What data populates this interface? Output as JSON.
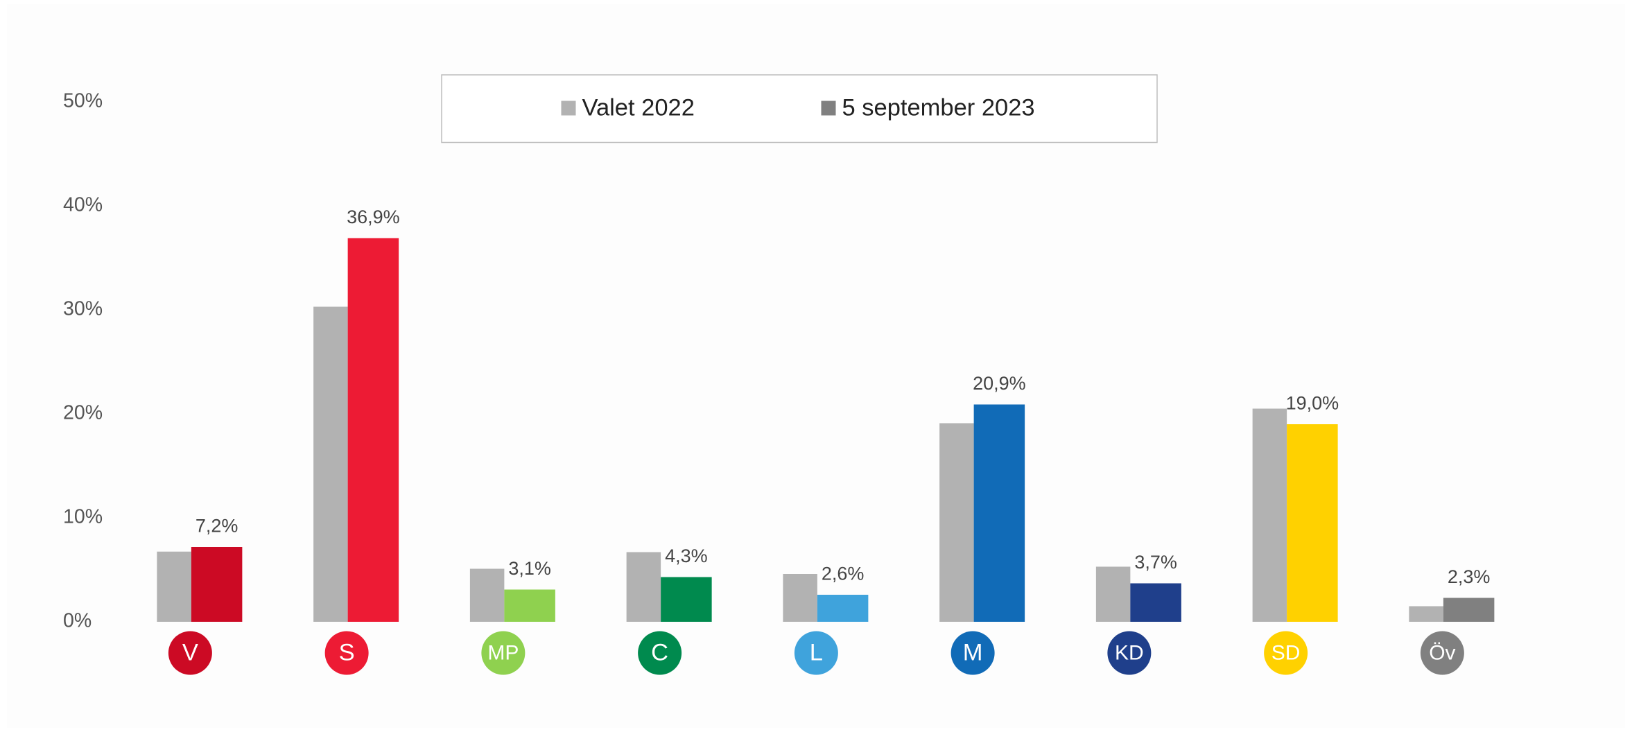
{
  "chart_data": {
    "type": "bar",
    "categories": [
      "V",
      "S",
      "MP",
      "C",
      "L",
      "M",
      "KD",
      "SD",
      "Öv"
    ],
    "series": [
      {
        "name": "Valet 2022",
        "color": "#b2b2b2",
        "values": [
          6.75,
          30.3,
          5.1,
          6.7,
          4.6,
          19.1,
          5.3,
          20.5,
          1.5
        ]
      },
      {
        "name": "5 september 2023",
        "color": "#808080",
        "colors": [
          "#cc0a24",
          "#ed1b34",
          "#8fd14f",
          "#008a4e",
          "#3fa3dc",
          "#116bb7",
          "#1f3f8b",
          "#ffd100",
          "#808080"
        ],
        "values": [
          7.2,
          36.9,
          3.1,
          4.3,
          2.6,
          20.9,
          3.7,
          19.0,
          2.3
        ],
        "value_labels": [
          "7,2%",
          "36,9%",
          "3,1%",
          "4,3%",
          "2,6%",
          "20,9%",
          "3,7%",
          "19,0%",
          "2,3%"
        ]
      }
    ],
    "category_colors": [
      "#cc0a24",
      "#ed1b34",
      "#8fd14f",
      "#008a4e",
      "#3fa3dc",
      "#116bb7",
      "#1f3f8b",
      "#ffd100",
      "#808080"
    ],
    "ylim": [
      0,
      50
    ],
    "yticks": [
      {
        "value": 0,
        "label": "0%"
      },
      {
        "value": 10,
        "label": "10%"
      },
      {
        "value": 20,
        "label": "20%"
      },
      {
        "value": 30,
        "label": "30%"
      },
      {
        "value": 40,
        "label": "40%"
      },
      {
        "value": 50,
        "label": "50%"
      }
    ],
    "legend": "top"
  }
}
